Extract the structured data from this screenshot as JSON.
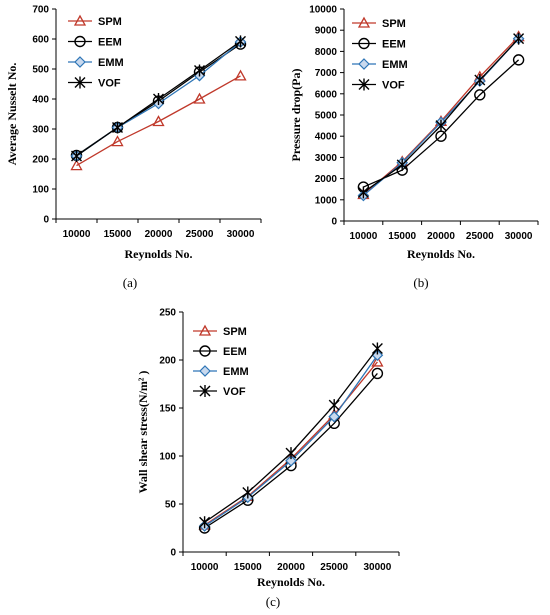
{
  "chart_data": [
    {
      "type": "line",
      "panel_label": "(a)",
      "title": "",
      "xlabel": "Reynolds No.",
      "ylabel": "Average Nusselt No.",
      "x": [
        10000,
        15000,
        20000,
        25000,
        30000
      ],
      "xtick_labels": [
        "10000",
        "15000",
        "20000",
        "25000",
        "30000"
      ],
      "ylim": [
        0,
        700
      ],
      "yticks": [
        0,
        100,
        200,
        300,
        400,
        500,
        600,
        700
      ],
      "legend_position": "top-left",
      "series": [
        {
          "name": "SPM",
          "marker": "triangle",
          "color": "#c0392b",
          "values": [
            178,
            258,
            325,
            400,
            477
          ]
        },
        {
          "name": "EEM",
          "marker": "circle",
          "color": "#000000",
          "values": [
            212,
            305,
            393,
            490,
            583
          ]
        },
        {
          "name": "EMM",
          "marker": "diamond",
          "color": "#2e75b6",
          "values": [
            210,
            305,
            385,
            478,
            590
          ]
        },
        {
          "name": "VOF",
          "marker": "star",
          "color": "#000000",
          "values": [
            210,
            305,
            400,
            495,
            592
          ]
        }
      ]
    },
    {
      "type": "line",
      "panel_label": "(b)",
      "title": "",
      "xlabel": "Reynolds No.",
      "ylabel": "Pressure drop(Pa)",
      "x": [
        10000,
        15000,
        20000,
        25000,
        30000
      ],
      "xtick_labels": [
        "10000",
        "15000",
        "20000",
        "25000",
        "30000"
      ],
      "ylim": [
        0,
        10000
      ],
      "yticks": [
        0,
        1000,
        2000,
        3000,
        4000,
        5000,
        6000,
        7000,
        8000,
        9000,
        10000
      ],
      "legend_position": "top-left",
      "series": [
        {
          "name": "SPM",
          "marker": "triangle",
          "color": "#c0392b",
          "values": [
            1250,
            2800,
            4700,
            6800,
            8700
          ]
        },
        {
          "name": "EEM",
          "marker": "circle",
          "color": "#000000",
          "values": [
            1600,
            2400,
            4000,
            5950,
            7600
          ]
        },
        {
          "name": "EMM",
          "marker": "diamond",
          "color": "#2e75b6",
          "values": [
            1200,
            2750,
            4650,
            6600,
            8600
          ]
        },
        {
          "name": "VOF",
          "marker": "star",
          "color": "#000000",
          "values": [
            1350,
            2650,
            4500,
            6650,
            8600
          ]
        }
      ]
    },
    {
      "type": "line",
      "panel_label": "(c)",
      "title": "",
      "xlabel": "Reynolds No.",
      "ylabel": "Wall shear stress(N/m² )",
      "x": [
        10000,
        15000,
        20000,
        25000,
        30000
      ],
      "xtick_labels": [
        "10000",
        "15000",
        "20000",
        "25000",
        "30000"
      ],
      "ylim": [
        0,
        250
      ],
      "yticks": [
        0,
        50,
        100,
        150,
        200,
        250
      ],
      "legend_position": "top-left",
      "series": [
        {
          "name": "SPM",
          "marker": "triangle",
          "color": "#c0392b",
          "values": [
            28,
            58,
            97,
            143,
            198
          ]
        },
        {
          "name": "EEM",
          "marker": "circle",
          "color": "#000000",
          "values": [
            25,
            54,
            90,
            134,
            186
          ]
        },
        {
          "name": "EMM",
          "marker": "diamond",
          "color": "#2e75b6",
          "values": [
            27,
            57,
            95,
            141,
            205
          ]
        },
        {
          "name": "VOF",
          "marker": "star",
          "color": "#000000",
          "values": [
            31,
            62,
            103,
            153,
            212
          ]
        }
      ]
    }
  ]
}
